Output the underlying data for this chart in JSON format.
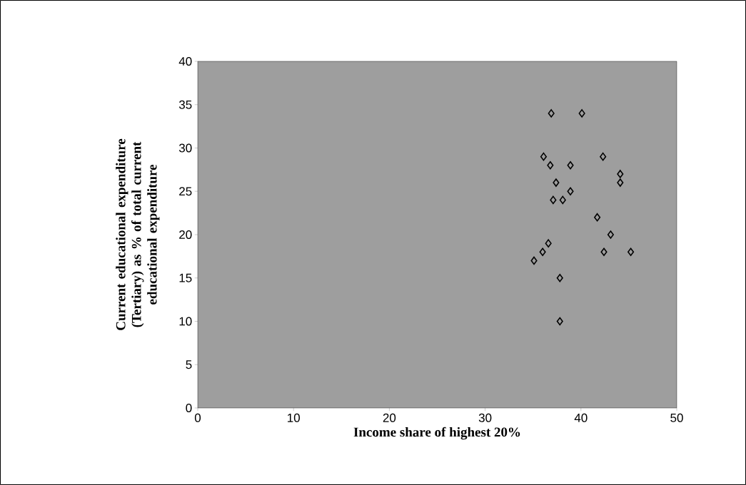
{
  "chart_data": {
    "type": "scatter",
    "xlabel": "Income share of highest 20%",
    "ylabel": "Current educational expenditure (Tertiary) as % of total current educational expenditure",
    "x": [
      36.9,
      40.1,
      36.1,
      36.8,
      38.9,
      42.3,
      44.1,
      44.1,
      37.4,
      38.9,
      37.1,
      38.1,
      41.7,
      43.1,
      36.6,
      36.0,
      35.1,
      42.4,
      45.2,
      37.8,
      37.8
    ],
    "values": [
      34,
      34,
      29,
      28,
      28,
      29,
      27,
      26,
      26,
      25,
      24,
      24,
      22,
      20,
      19,
      18,
      17,
      18,
      18,
      15,
      10
    ],
    "color": "#000000",
    "marker": "diamond",
    "xlim": [
      0,
      50
    ],
    "ylim": [
      0,
      40
    ],
    "xticks": [
      0,
      10,
      20,
      30,
      40,
      50
    ],
    "yticks": [
      0,
      5,
      10,
      15,
      20,
      25,
      30,
      35,
      40
    ],
    "grid": false
  }
}
